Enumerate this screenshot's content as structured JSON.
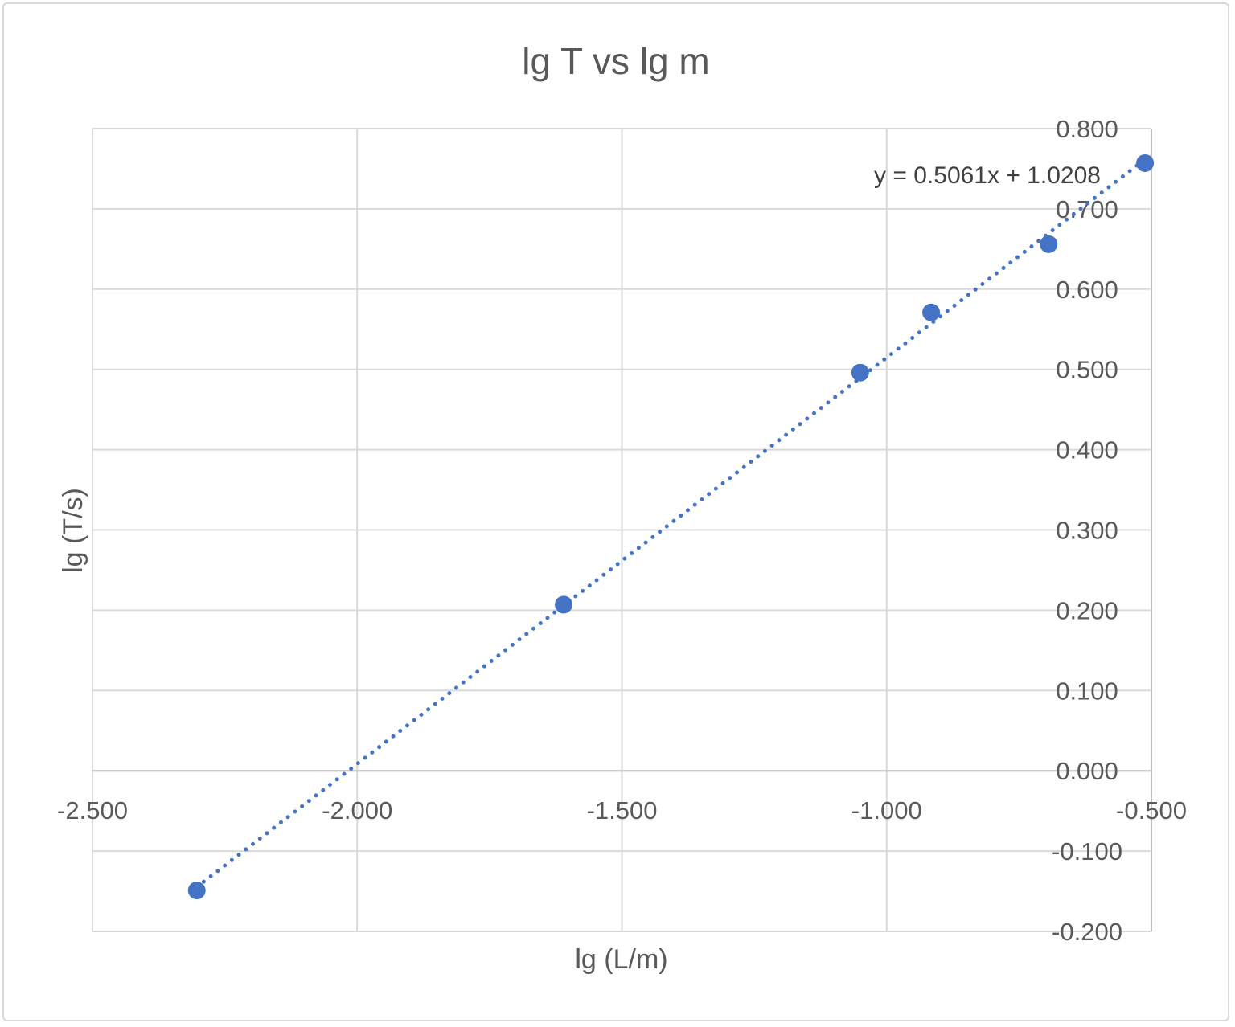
{
  "chart_data": {
    "type": "scatter",
    "title": "lg T vs lg m",
    "xlabel": "lg (L/m)",
    "ylabel": "lg (T/s)",
    "xlim": [
      -2.5,
      -0.5
    ],
    "ylim": [
      -0.2,
      0.8
    ],
    "x_ticks": [
      "-2.500",
      "-2.000",
      "-1.500",
      "-1.000",
      "-0.500"
    ],
    "y_ticks": [
      "-0.200",
      "-0.100",
      "0.000",
      "0.100",
      "0.200",
      "0.300",
      "0.400",
      "0.500",
      "0.600",
      "0.700",
      "0.800"
    ],
    "grid": true,
    "points": [
      {
        "x": -2.303,
        "y": -0.149
      },
      {
        "x": -1.61,
        "y": 0.207
      },
      {
        "x": -1.05,
        "y": 0.496
      },
      {
        "x": -0.916,
        "y": 0.571
      },
      {
        "x": -0.694,
        "y": 0.656
      },
      {
        "x": -0.512,
        "y": 0.757
      }
    ],
    "trendline": {
      "type": "linear",
      "slope": 0.5061,
      "intercept": 1.0208,
      "style": "dotted",
      "label": "y = 0.5061x + 1.0208"
    },
    "colors": {
      "marker": "#4472C4",
      "trendline": "#4472C4",
      "grid": "#d9d9d9"
    }
  }
}
